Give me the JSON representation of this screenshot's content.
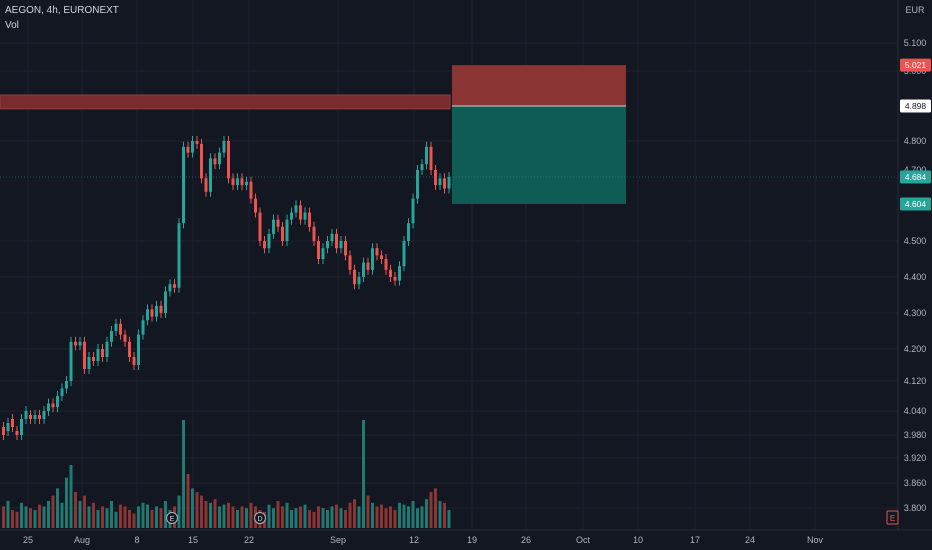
{
  "header": {
    "symbol": "AEGON, 4h, EURONEXT",
    "volume_label": "Vol"
  },
  "currency": "EUR",
  "colors": {
    "background": "#131722",
    "up": "#26a69a",
    "down": "#ef5350",
    "up_vol": "#1f7a72",
    "down_vol": "#8c3533",
    "grid": "#1c2030",
    "stop_zone": "#8a3533",
    "target_zone": "#0f5c55",
    "resistance": "#7a2b2d",
    "axis_text": "#b2b5be"
  },
  "price_axis": {
    "ticks": [
      "5.100",
      "5.000",
      "4.898",
      "4.800",
      "4.700",
      "4.684",
      "4.604",
      "4.500",
      "4.400",
      "4.300",
      "4.200",
      "4.120",
      "4.040",
      "3.980",
      "3.920",
      "3.860",
      "3.800"
    ]
  },
  "time_axis": {
    "ticks": [
      "25",
      "Aug",
      "8",
      "15",
      "22",
      "Sep",
      "12",
      "19",
      "26",
      "Oct",
      "10",
      "17",
      "24",
      "Nov"
    ]
  },
  "price_badges": [
    {
      "value": "5.021",
      "color": "#ef5350",
      "text_color": "#ffffff"
    },
    {
      "value": "4.898",
      "color": "#ffffff",
      "text_color": "#131722"
    },
    {
      "value": "4.684",
      "color": "#26a69a",
      "text_color": "#ffffff"
    },
    {
      "value": "4.604",
      "color": "#26a69a",
      "text_color": "#ffffff"
    }
  ],
  "markers": [
    {
      "label": "E"
    },
    {
      "label": "D"
    }
  ],
  "axis_corner_label": "E",
  "chart_data": {
    "type": "candlestick",
    "title": "AEGON, 4h, EURONEXT",
    "currency": "EUR",
    "position": {
      "direction": "short",
      "entry": 4.898,
      "stop": 5.021,
      "target": 4.604
    },
    "resistance_zone": [
      4.89,
      4.93
    ],
    "last_price": 4.684,
    "volume_label": "Vol",
    "candles": [
      {
        "o": 4.0,
        "c": 3.98
      },
      {
        "o": 3.99,
        "c": 4.01
      },
      {
        "o": 4.02,
        "c": 4.0
      },
      {
        "o": 3.99,
        "c": 3.98
      },
      {
        "o": 3.98,
        "c": 4.02
      },
      {
        "o": 4.02,
        "c": 4.04
      },
      {
        "o": 4.03,
        "c": 4.02
      },
      {
        "o": 4.02,
        "c": 4.03
      },
      {
        "o": 4.03,
        "c": 4.02
      },
      {
        "o": 4.02,
        "c": 4.04
      },
      {
        "o": 4.04,
        "c": 4.06
      },
      {
        "o": 4.06,
        "c": 4.05
      },
      {
        "o": 4.05,
        "c": 4.08
      },
      {
        "o": 4.08,
        "c": 4.1
      },
      {
        "o": 4.1,
        "c": 4.12
      },
      {
        "o": 4.12,
        "c": 4.22
      },
      {
        "o": 4.22,
        "c": 4.21
      },
      {
        "o": 4.21,
        "c": 4.22
      },
      {
        "o": 4.22,
        "c": 4.15
      },
      {
        "o": 4.15,
        "c": 4.18
      },
      {
        "o": 4.18,
        "c": 4.17
      },
      {
        "o": 4.17,
        "c": 4.2
      },
      {
        "o": 4.2,
        "c": 4.18
      },
      {
        "o": 4.18,
        "c": 4.22
      },
      {
        "o": 4.22,
        "c": 4.25
      },
      {
        "o": 4.25,
        "c": 4.27
      },
      {
        "o": 4.27,
        "c": 4.24
      },
      {
        "o": 4.24,
        "c": 4.22
      },
      {
        "o": 4.22,
        "c": 4.18
      },
      {
        "o": 4.18,
        "c": 4.16
      },
      {
        "o": 4.16,
        "c": 4.24
      },
      {
        "o": 4.24,
        "c": 4.28
      },
      {
        "o": 4.28,
        "c": 4.31
      },
      {
        "o": 4.31,
        "c": 4.29
      },
      {
        "o": 4.29,
        "c": 4.32
      },
      {
        "o": 4.32,
        "c": 4.3
      },
      {
        "o": 4.3,
        "c": 4.36
      },
      {
        "o": 4.36,
        "c": 4.38
      },
      {
        "o": 4.38,
        "c": 4.37
      },
      {
        "o": 4.37,
        "c": 4.55
      },
      {
        "o": 4.55,
        "c": 4.78
      },
      {
        "o": 4.78,
        "c": 4.76
      },
      {
        "o": 4.76,
        "c": 4.8
      },
      {
        "o": 4.8,
        "c": 4.79
      },
      {
        "o": 4.79,
        "c": 4.68
      },
      {
        "o": 4.68,
        "c": 4.64
      },
      {
        "o": 4.64,
        "c": 4.74
      },
      {
        "o": 4.74,
        "c": 4.72
      },
      {
        "o": 4.72,
        "c": 4.76
      },
      {
        "o": 4.76,
        "c": 4.8
      },
      {
        "o": 4.8,
        "c": 4.68
      },
      {
        "o": 4.68,
        "c": 4.66
      },
      {
        "o": 4.66,
        "c": 4.68
      },
      {
        "o": 4.68,
        "c": 4.66
      },
      {
        "o": 4.66,
        "c": 4.67
      },
      {
        "o": 4.67,
        "c": 4.62
      },
      {
        "o": 4.62,
        "c": 4.58
      },
      {
        "o": 4.58,
        "c": 4.5
      },
      {
        "o": 4.5,
        "c": 4.48
      },
      {
        "o": 4.48,
        "c": 4.52
      },
      {
        "o": 4.52,
        "c": 4.56
      },
      {
        "o": 4.56,
        "c": 4.54
      },
      {
        "o": 4.54,
        "c": 4.5
      },
      {
        "o": 4.5,
        "c": 4.56
      },
      {
        "o": 4.56,
        "c": 4.58
      },
      {
        "o": 4.58,
        "c": 4.6
      },
      {
        "o": 4.6,
        "c": 4.56
      },
      {
        "o": 4.56,
        "c": 4.58
      },
      {
        "o": 4.58,
        "c": 4.54
      },
      {
        "o": 4.54,
        "c": 4.5
      },
      {
        "o": 4.5,
        "c": 4.45
      },
      {
        "o": 4.45,
        "c": 4.48
      },
      {
        "o": 4.48,
        "c": 4.5
      },
      {
        "o": 4.5,
        "c": 4.52
      },
      {
        "o": 4.52,
        "c": 4.48
      },
      {
        "o": 4.48,
        "c": 4.5
      },
      {
        "o": 4.5,
        "c": 4.46
      },
      {
        "o": 4.46,
        "c": 4.42
      },
      {
        "o": 4.42,
        "c": 4.38
      },
      {
        "o": 4.38,
        "c": 4.4
      },
      {
        "o": 4.4,
        "c": 4.44
      },
      {
        "o": 4.44,
        "c": 4.42
      },
      {
        "o": 4.42,
        "c": 4.48
      },
      {
        "o": 4.48,
        "c": 4.46
      },
      {
        "o": 4.46,
        "c": 4.45
      },
      {
        "o": 4.45,
        "c": 4.42
      },
      {
        "o": 4.42,
        "c": 4.4
      },
      {
        "o": 4.4,
        "c": 4.39
      },
      {
        "o": 4.39,
        "c": 4.43
      },
      {
        "o": 4.43,
        "c": 4.5
      },
      {
        "o": 4.5,
        "c": 4.55
      },
      {
        "o": 4.55,
        "c": 4.62
      },
      {
        "o": 4.62,
        "c": 4.7
      },
      {
        "o": 4.7,
        "c": 4.72
      },
      {
        "o": 4.72,
        "c": 4.78
      },
      {
        "o": 4.78,
        "c": 4.7
      },
      {
        "o": 4.7,
        "c": 4.66
      },
      {
        "o": 4.66,
        "c": 4.68
      },
      {
        "o": 4.68,
        "c": 4.65
      },
      {
        "o": 4.65,
        "c": 4.684
      }
    ],
    "volume": [
      0.12,
      0.15,
      0.1,
      0.09,
      0.14,
      0.12,
      0.11,
      0.1,
      0.13,
      0.12,
      0.15,
      0.18,
      0.22,
      0.14,
      0.28,
      0.35,
      0.2,
      0.15,
      0.18,
      0.12,
      0.14,
      0.1,
      0.12,
      0.11,
      0.15,
      0.09,
      0.13,
      0.12,
      0.1,
      0.08,
      0.12,
      0.14,
      0.13,
      0.1,
      0.12,
      0.11,
      0.15,
      0.1,
      0.12,
      0.18,
      0.6,
      0.3,
      0.22,
      0.2,
      0.18,
      0.15,
      0.14,
      0.16,
      0.12,
      0.13,
      0.14,
      0.12,
      0.1,
      0.12,
      0.11,
      0.14,
      0.12,
      0.1,
      0.09,
      0.13,
      0.11,
      0.15,
      0.12,
      0.14,
      0.1,
      0.11,
      0.12,
      0.13,
      0.1,
      0.09,
      0.12,
      0.11,
      0.1,
      0.12,
      0.13,
      0.11,
      0.1,
      0.14,
      0.16,
      0.12,
      0.6,
      0.18,
      0.14,
      0.12,
      0.13,
      0.11,
      0.12,
      0.1,
      0.14,
      0.13,
      0.12,
      0.15,
      0.11,
      0.12,
      0.16,
      0.2,
      0.22,
      0.15,
      0.14,
      0.1
    ]
  }
}
